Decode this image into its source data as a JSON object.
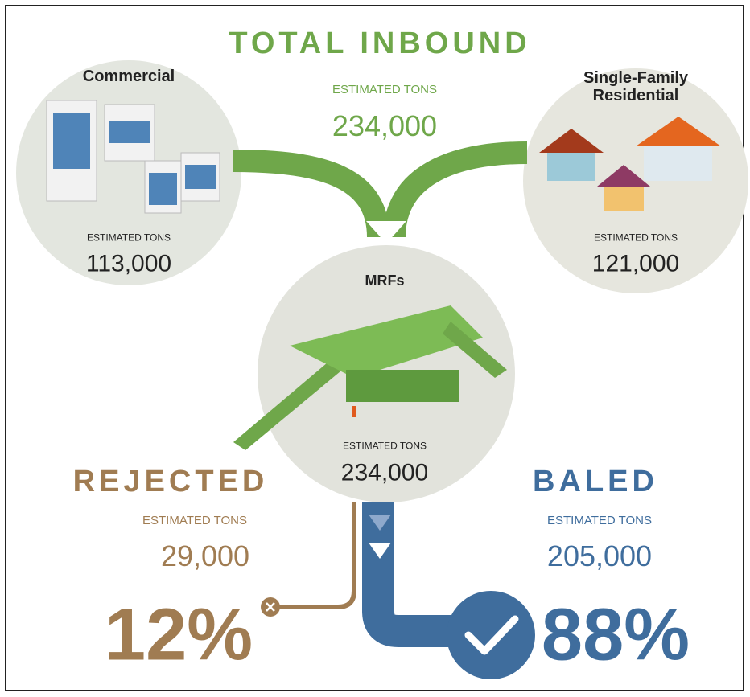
{
  "title": "TOTAL INBOUND",
  "total": {
    "label": "ESTIMATED TONS",
    "value": "234,000"
  },
  "sources": [
    {
      "name": "Commercial",
      "label": "ESTIMATED TONS",
      "value": "113,000"
    },
    {
      "name": "Single-Family Residential",
      "label": "ESTIMATED TONS",
      "value": "121,000"
    }
  ],
  "mrf": {
    "name": "MRFs",
    "label": "ESTIMATED TONS",
    "value": "234,000"
  },
  "outputs": [
    {
      "name": "REJECTED",
      "label": "ESTIMATED TONS",
      "value": "29,000",
      "percent": "12%"
    },
    {
      "name": "BALED",
      "label": "ESTIMATED TONS",
      "value": "205,000",
      "percent": "88%"
    }
  ]
}
